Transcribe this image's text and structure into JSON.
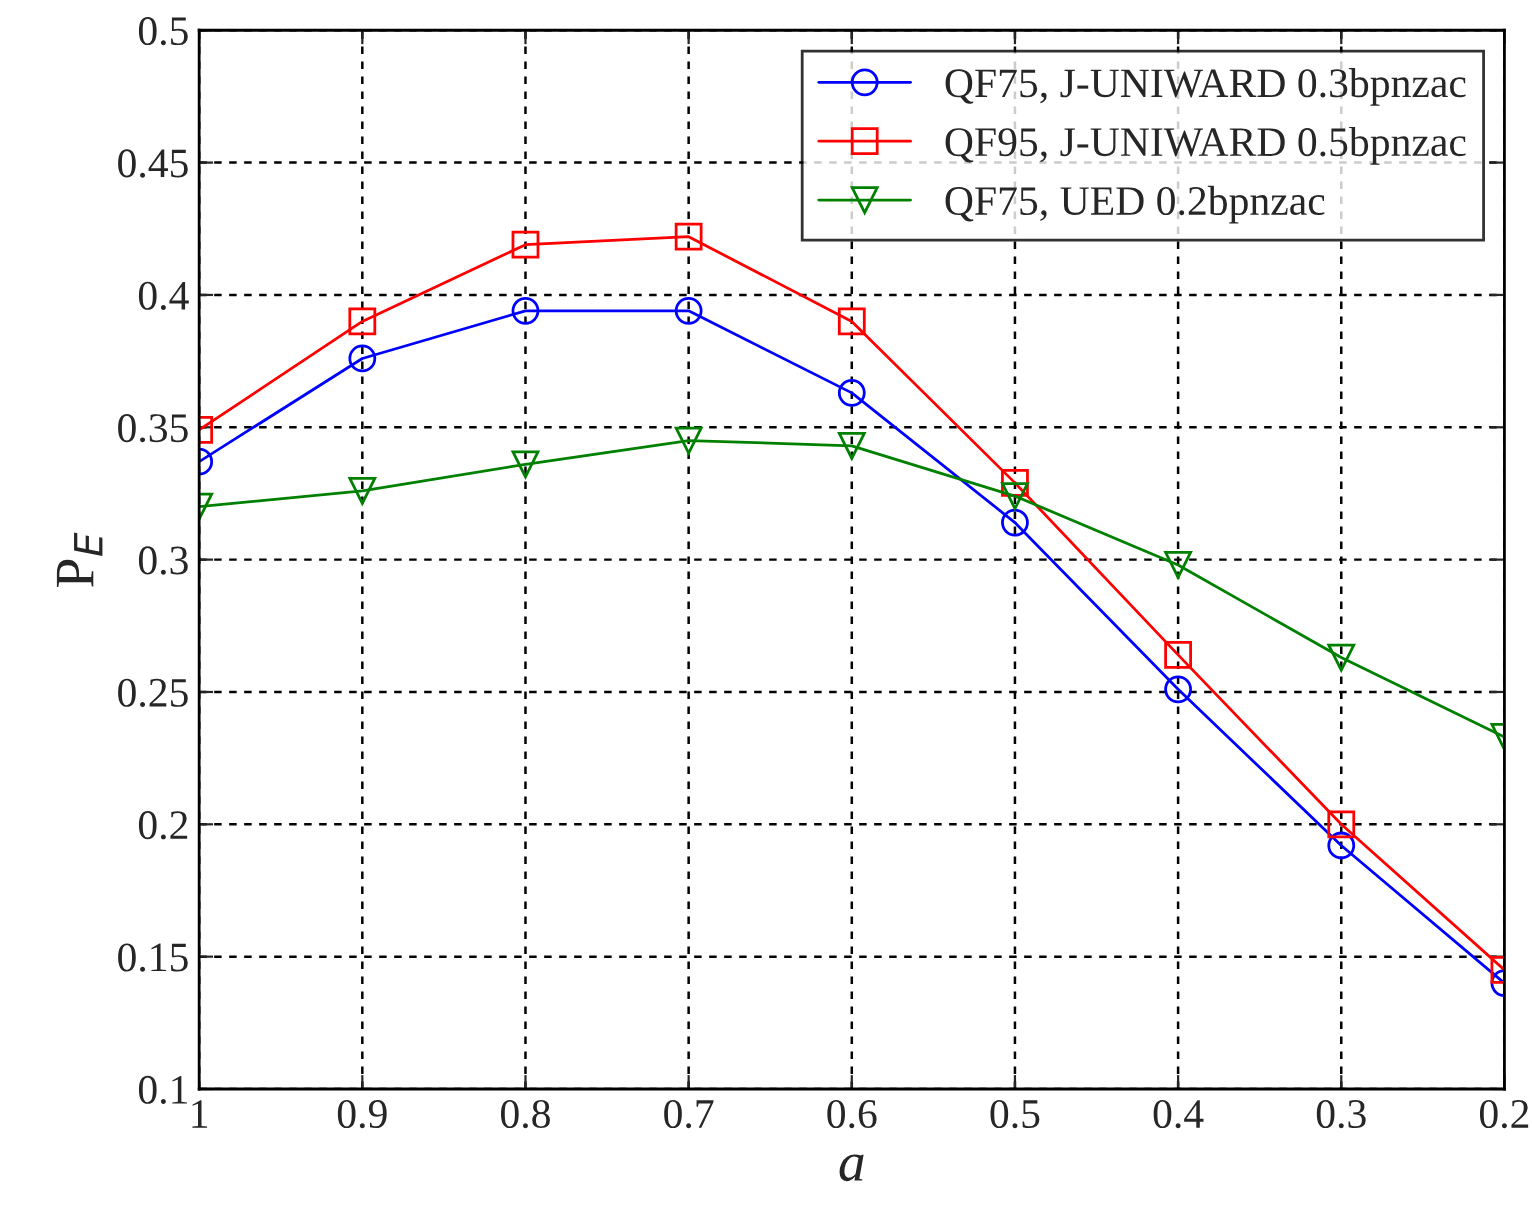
{
  "chart_data": {
    "type": "line",
    "xlabel": "a",
    "ylabel": "P$_{E}$",
    "x": [
      1,
      0.9,
      0.8,
      0.7,
      0.6,
      0.5,
      0.4,
      0.3,
      0.2
    ],
    "xlim": [
      1,
      0.2
    ],
    "xticks": [
      1,
      0.9,
      0.8,
      0.7,
      0.6,
      0.5,
      0.4,
      0.3,
      0.2
    ],
    "ylim": [
      0.1,
      0.5
    ],
    "yticks": [
      0.1,
      0.15,
      0.2,
      0.25,
      0.3,
      0.35,
      0.4,
      0.45,
      0.5
    ],
    "grid": true,
    "legend": "top right",
    "line_style": "solid",
    "series": [
      {
        "name": "QF75, J-UNIWARD 0.3bpnzac",
        "color": "#0000ff",
        "marker": "circle",
        "values": [
          0.337,
          0.376,
          0.394,
          0.394,
          0.363,
          0.314,
          0.251,
          0.192,
          0.14
        ]
      },
      {
        "name": "QF95, J-UNIWARD 0.5bpnzac",
        "color": "#ff0000",
        "marker": "square",
        "values": [
          0.349,
          0.39,
          0.419,
          0.422,
          0.39,
          0.329,
          0.264,
          0.2,
          0.145
        ]
      },
      {
        "name": "QF75, UED 0.2bpnzac",
        "color": "#008000",
        "marker": "triangle",
        "values": [
          0.32,
          0.326,
          0.336,
          0.345,
          0.343,
          0.324,
          0.298,
          0.263,
          0.233
        ]
      }
    ]
  }
}
